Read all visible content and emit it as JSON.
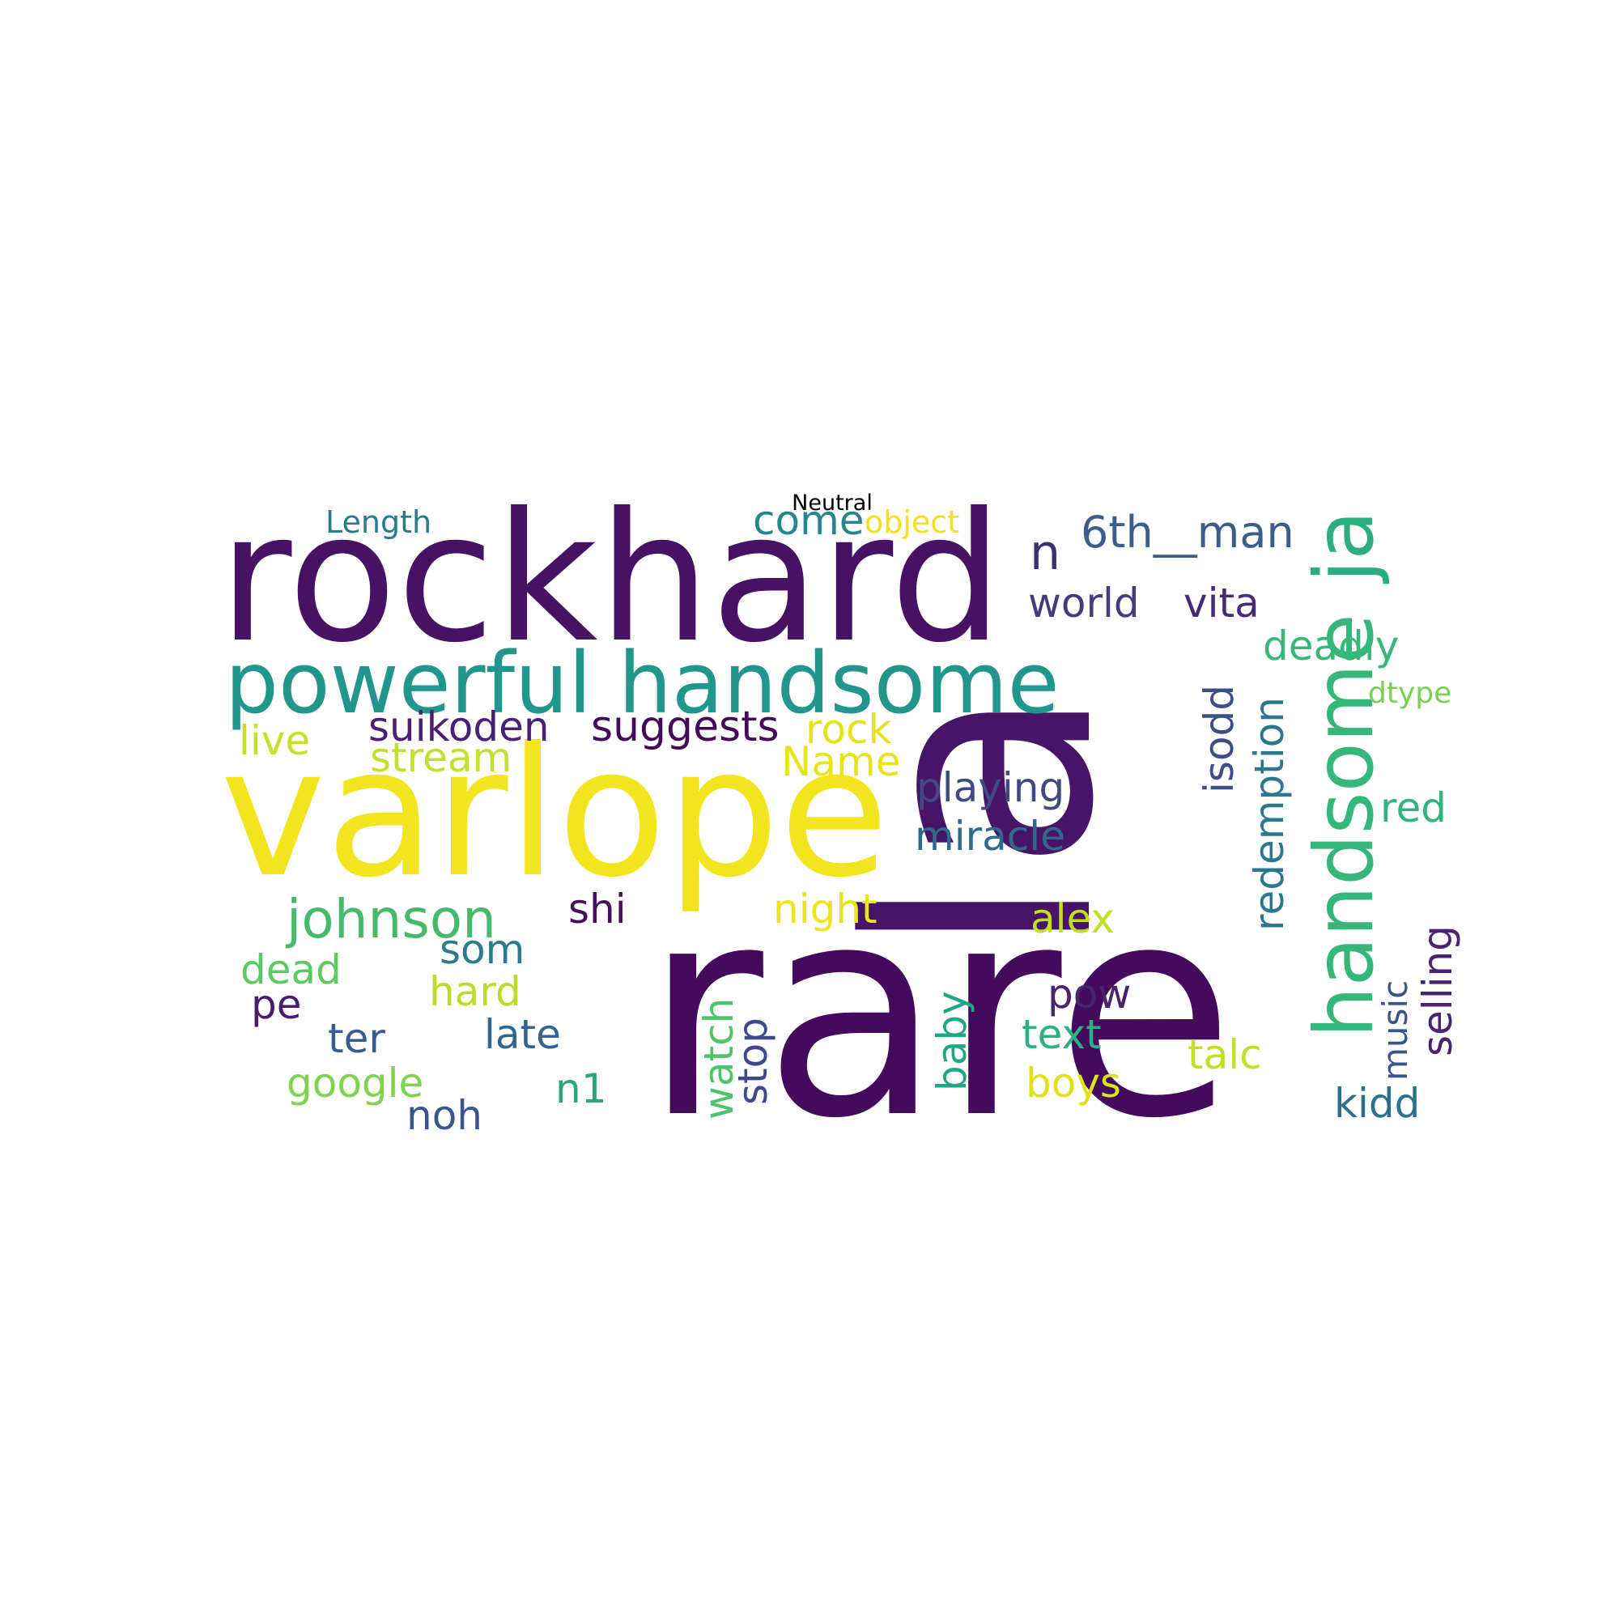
{
  "title": "Neutral",
  "colors": {
    "background": "#ffffff",
    "title": "#000000"
  },
  "words": [
    {
      "text": "rare",
      "color": "#440a5b"
    },
    {
      "text": "la",
      "color": "#481468"
    },
    {
      "text": "rockhard",
      "color": "#471164"
    },
    {
      "text": "varlope",
      "color": "#f2e51d"
    },
    {
      "text": "powerful handsome",
      "color": "#21968c"
    },
    {
      "text": "handsome",
      "color": "#35b779"
    },
    {
      "text": "ja",
      "color": "#2cad7e"
    },
    {
      "text": "johnson",
      "color": "#46ba6b"
    },
    {
      "text": "6th__man",
      "color": "#3a5d8c"
    },
    {
      "text": "n",
      "color": "#3d2f72"
    },
    {
      "text": "come",
      "color": "#25868d"
    },
    {
      "text": "object",
      "color": "#f0e220"
    },
    {
      "text": "Length",
      "color": "#2a7a8e"
    },
    {
      "text": "world",
      "color": "#433c7c"
    },
    {
      "text": "vita",
      "color": "#472a74"
    },
    {
      "text": "deadly",
      "color": "#37b879"
    },
    {
      "text": "dtype",
      "color": "#79d151"
    },
    {
      "text": "suikoden",
      "color": "#482172"
    },
    {
      "text": "suggests",
      "color": "#430a5a"
    },
    {
      "text": "rock",
      "color": "#e2e41a"
    },
    {
      "text": "live",
      "color": "#c8df28"
    },
    {
      "text": "stream",
      "color": "#c3df2f"
    },
    {
      "text": "Name",
      "color": "#e6e41a"
    },
    {
      "text": "playing",
      "color": "#3f4a82"
    },
    {
      "text": "miracle",
      "color": "#2f6a8d"
    },
    {
      "text": "isodd",
      "color": "#3d4d86"
    },
    {
      "text": "redemption",
      "color": "#2a778e"
    },
    {
      "text": "red",
      "color": "#2fb47c"
    },
    {
      "text": "selling",
      "color": "#472371"
    },
    {
      "text": "music",
      "color": "#3b538b"
    },
    {
      "text": "shi",
      "color": "#460e5c"
    },
    {
      "text": "night",
      "color": "#ece51c"
    },
    {
      "text": "alex",
      "color": "#c2df23"
    },
    {
      "text": "som",
      "color": "#2b7b8e"
    },
    {
      "text": "dead",
      "color": "#5ec863"
    },
    {
      "text": "hard",
      "color": "#bade28"
    },
    {
      "text": "pe",
      "color": "#481d6f"
    },
    {
      "text": "pow",
      "color": "#46246f"
    },
    {
      "text": "text",
      "color": "#2bb07f"
    },
    {
      "text": "ter",
      "color": "#365d8d"
    },
    {
      "text": "late",
      "color": "#32658e"
    },
    {
      "text": "watch",
      "color": "#4ec36b"
    },
    {
      "text": "stop",
      "color": "#3f4989"
    },
    {
      "text": "baby",
      "color": "#21a685"
    },
    {
      "text": "talc",
      "color": "#c0df25"
    },
    {
      "text": "google",
      "color": "#7fd34e"
    },
    {
      "text": "boys",
      "color": "#dde318"
    },
    {
      "text": "n1",
      "color": "#2ca57f"
    },
    {
      "text": "noh",
      "color": "#3a548c"
    },
    {
      "text": "kidd",
      "color": "#2c6f8e"
    }
  ]
}
